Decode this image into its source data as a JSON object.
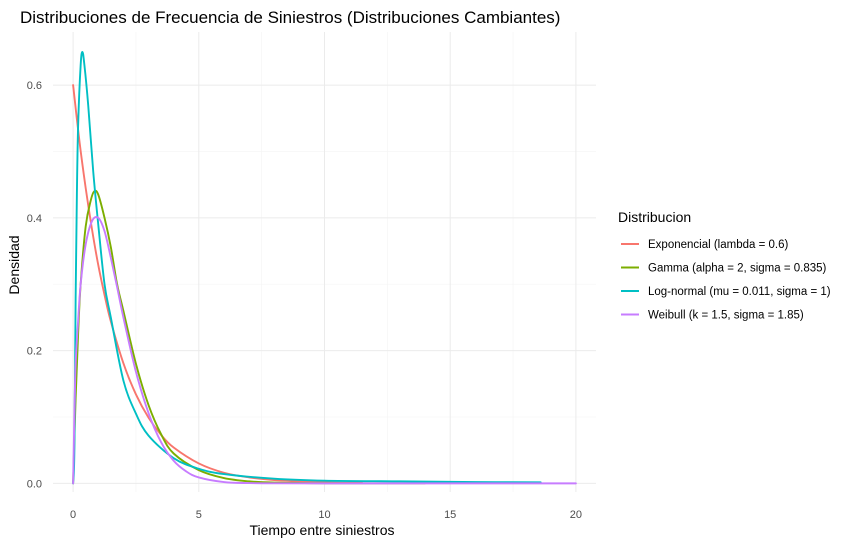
{
  "chart_data": {
    "type": "line",
    "title": "Distribuciones de Frecuencia de Siniestros (Distribuciones Cambiantes)",
    "xlabel": "Tiempo entre siniestros",
    "ylabel": "Densidad",
    "xlim": [
      -0.8,
      20.8
    ],
    "ylim": [
      -0.013,
      0.68
    ],
    "x_ticks": [
      0,
      5,
      10,
      15,
      20
    ],
    "x_tick_labels": [
      "0",
      "5",
      "10",
      "15",
      "20"
    ],
    "y_ticks": [
      0,
      0.2,
      0.4,
      0.6
    ],
    "y_tick_labels": [
      "0.0",
      "0.2",
      "0.4",
      "0.6"
    ],
    "grid": true,
    "legend": {
      "title": "Distribucion",
      "placement": "right"
    },
    "series": [
      {
        "name": "Exponencial (lambda = 0.6)",
        "color": "#F8766D",
        "x": [
          0,
          0.25,
          0.5,
          0.75,
          1,
          1.25,
          1.5,
          2,
          2.5,
          3,
          3.5,
          4,
          5,
          6,
          7,
          8,
          9,
          10,
          11.5
        ],
        "values": [
          0.6,
          0.516,
          0.445,
          0.383,
          0.329,
          0.284,
          0.244,
          0.181,
          0.134,
          0.099,
          0.073,
          0.054,
          0.03,
          0.016,
          0.009,
          0.005,
          0.003,
          0.0015,
          0.0006
        ]
      },
      {
        "name": "Gamma (alpha = 2, sigma = 0.835)",
        "color": "#7CAE00",
        "x": [
          0,
          0.1,
          0.2,
          0.3,
          0.5,
          0.7,
          0.84,
          1,
          1.25,
          1.5,
          1.75,
          2,
          2.5,
          3,
          3.5,
          4,
          5,
          6,
          7,
          8,
          10,
          14
        ],
        "values": [
          0,
          0.128,
          0.226,
          0.3,
          0.387,
          0.426,
          0.44,
          0.435,
          0.4,
          0.356,
          0.3,
          0.26,
          0.18,
          0.118,
          0.074,
          0.045,
          0.02,
          0.008,
          0.003,
          0.0012,
          0.0002,
          0.0001
        ]
      },
      {
        "name": "Log-normal (mu = 0.011, sigma = 1)",
        "color": "#00BFC4",
        "x": [
          0,
          0.05,
          0.1,
          0.15,
          0.2,
          0.3,
          0.37,
          0.45,
          0.6,
          0.8,
          1,
          1.25,
          1.5,
          2,
          2.5,
          3,
          4,
          5,
          6,
          8,
          10,
          13,
          16,
          18.6
        ],
        "values": [
          0,
          0.05,
          0.28,
          0.435,
          0.54,
          0.63,
          0.65,
          0.63,
          0.57,
          0.47,
          0.39,
          0.3,
          0.25,
          0.155,
          0.105,
          0.072,
          0.038,
          0.022,
          0.014,
          0.007,
          0.004,
          0.003,
          0.002,
          0.0015
        ]
      },
      {
        "name": "Weibull (k = 1.5, sigma = 1.85)",
        "color": "#C77CFF",
        "x": [
          0,
          0.05,
          0.1,
          0.2,
          0.3,
          0.5,
          0.75,
          1,
          1.25,
          1.5,
          1.75,
          2,
          2.5,
          3,
          3.5,
          4,
          4.5,
          5,
          6,
          7,
          8,
          10,
          15,
          20
        ],
        "values": [
          0,
          0.1,
          0.18,
          0.245,
          0.3,
          0.36,
          0.395,
          0.4,
          0.38,
          0.34,
          0.296,
          0.25,
          0.168,
          0.106,
          0.062,
          0.034,
          0.018,
          0.009,
          0.002,
          0.0004,
          0.0001,
          0,
          0,
          0
        ]
      }
    ]
  }
}
